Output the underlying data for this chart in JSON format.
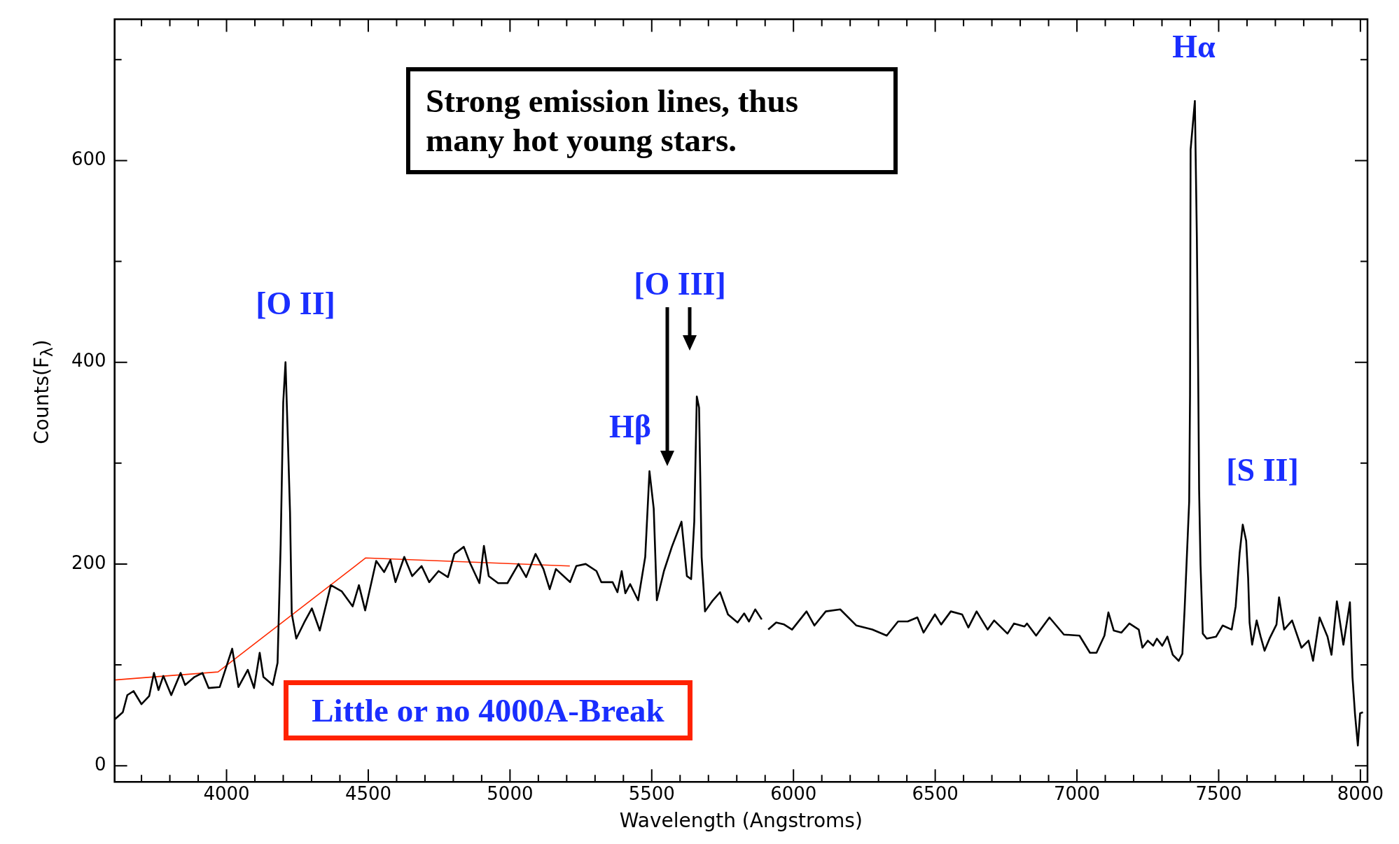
{
  "chart_data": {
    "type": "line",
    "xlabel": "Wavelength (Angstroms)",
    "ylabel": "Counts(F$_{λ}$)",
    "xlim": [
      3605,
      8025
    ],
    "ylim": [
      -16,
      740
    ],
    "xticks": [
      {
        "value": 3700,
        "label": null
      },
      {
        "value": 3800,
        "label": null
      },
      {
        "value": 3900,
        "label": null
      },
      4000,
      {
        "value": 4100,
        "label": null
      },
      {
        "value": 4200,
        "label": null
      },
      {
        "value": 4300,
        "label": null
      },
      {
        "value": 4400,
        "label": null
      },
      4500,
      {
        "value": 4600,
        "label": null
      },
      {
        "value": 4700,
        "label": null
      },
      {
        "value": 4800,
        "label": null
      },
      {
        "value": 4900,
        "label": null
      },
      5000,
      {
        "value": 5100,
        "label": null
      },
      {
        "value": 5200,
        "label": null
      },
      {
        "value": 5300,
        "label": null
      },
      {
        "value": 5400,
        "label": null
      },
      5500,
      {
        "value": 5600,
        "label": null
      },
      {
        "value": 5700,
        "label": null
      },
      {
        "value": 5800,
        "label": null
      },
      {
        "value": 5900,
        "label": null
      },
      6000,
      {
        "value": 6100,
        "label": null
      },
      {
        "value": 6200,
        "label": null
      },
      {
        "value": 6300,
        "label": null
      },
      {
        "value": 6400,
        "label": null
      },
      6500,
      {
        "value": 6600,
        "label": null
      },
      {
        "value": 6700,
        "label": null
      },
      {
        "value": 6800,
        "label": null
      },
      {
        "value": 6900,
        "label": null
      },
      7000,
      {
        "value": 7100,
        "label": null
      },
      {
        "value": 7200,
        "label": null
      },
      {
        "value": 7300,
        "label": null
      },
      {
        "value": 7400,
        "label": null
      },
      7500,
      {
        "value": 7600,
        "label": null
      },
      {
        "value": 7700,
        "label": null
      },
      {
        "value": 7800,
        "label": null
      },
      {
        "value": 7900,
        "label": null
      },
      8000
    ],
    "yticks": [
      0,
      {
        "value": 100,
        "label": null
      },
      200,
      {
        "value": 300,
        "label": null
      },
      400,
      {
        "value": 500,
        "label": null
      },
      600,
      {
        "value": 700,
        "label": null
      }
    ],
    "grid": false,
    "legend": false,
    "series": [
      {
        "color": "#000000",
        "x": [
          3606,
          3634,
          3650,
          3672,
          3700,
          3727,
          3744,
          3760,
          3777,
          3805,
          3838,
          3854,
          3887,
          3915,
          3937,
          3976,
          4020,
          4042,
          4075,
          4097,
          4117,
          4130,
          4163,
          4180,
          4191,
          4200,
          4208,
          4216,
          4224,
          4230,
          4246,
          4274,
          4301,
          4329,
          4368,
          4406,
          4445,
          4467,
          4489,
          4528,
          4556,
          4578,
          4596,
          4627,
          4655,
          4688,
          4715,
          4748,
          4781,
          4804,
          4837,
          4859,
          4892,
          4908,
          4925,
          4958,
          4991,
          5030,
          5057,
          5090,
          5118,
          5140,
          5162,
          5212,
          5234,
          5267,
          5305,
          5322,
          5362,
          5379,
          5394,
          5407,
          5424,
          5452,
          5477,
          5492,
          5507,
          5518,
          5543,
          5571,
          5605,
          5624,
          5639,
          5650,
          5659,
          5667,
          5676,
          5688,
          5713,
          5741,
          5769,
          5803,
          5826,
          5843,
          5865,
          5888,
          5900,
          5911,
          5939,
          5967,
          5995,
          6046,
          6074,
          6114,
          6165,
          6222,
          6278,
          6329,
          6369,
          6403,
          6437,
          6459,
          6499,
          6521,
          6555,
          6595,
          6617,
          6646,
          6685,
          6708,
          6755,
          6778,
          6815,
          6824,
          6856,
          6903,
          6954,
          7009,
          7046,
          7069,
          7097,
          7111,
          7130,
          7157,
          7185,
          7218,
          7231,
          7250,
          7269,
          7282,
          7301,
          7319,
          7338,
          7359,
          7372,
          7380,
          7396,
          7399,
          7401,
          7416,
          7423,
          7427,
          7431,
          7436,
          7444,
          7458,
          7491,
          7514,
          7546,
          7560,
          7574,
          7585,
          7597,
          7604,
          7609,
          7618,
          7634,
          7648,
          7662,
          7681,
          7704,
          7713,
          7731,
          7759,
          7792,
          7817,
          7833,
          7856,
          7884,
          7898,
          7917,
          7940,
          7963,
          7972,
          7981,
          7991,
          7999,
          8009
        ],
        "values": [
          46,
          53,
          70,
          74,
          61,
          69,
          92,
          75,
          89,
          70,
          92,
          80,
          88,
          92,
          77,
          78,
          116,
          78,
          95,
          77,
          112,
          88,
          80,
          102,
          220,
          360,
          400,
          327,
          251,
          151,
          126,
          142,
          156,
          134,
          179,
          173,
          158,
          179,
          154,
          203,
          192,
          204,
          182,
          207,
          188,
          198,
          182,
          193,
          187,
          210,
          217,
          201,
          181,
          218,
          188,
          181,
          181,
          200,
          187,
          210,
          195,
          175,
          195,
          182,
          198,
          200,
          193,
          182,
          182,
          172,
          193,
          171,
          180,
          164,
          207,
          292,
          255,
          164,
          193,
          217,
          242,
          188,
          185,
          242,
          366,
          355,
          207,
          153,
          163,
          172,
          150,
          142,
          151,
          143,
          155,
          145,
          null,
          135,
          142,
          140,
          135,
          153,
          139,
          153,
          155,
          139,
          135,
          129,
          143,
          143,
          147,
          132,
          150,
          140,
          153,
          150,
          137,
          153,
          135,
          144,
          131,
          141,
          138,
          141,
          129,
          147,
          130,
          129,
          112,
          112,
          129,
          152,
          134,
          132,
          141,
          135,
          117,
          124,
          119,
          126,
          119,
          128,
          110,
          104,
          111,
          156,
          262,
          368,
          611,
          659,
          524,
          413,
          274,
          199,
          131,
          126,
          128,
          139,
          135,
          158,
          211,
          239,
          223,
          186,
          142,
          120,
          144,
          128,
          114,
          127,
          140,
          167,
          135,
          144,
          117,
          124,
          104,
          147,
          128,
          110,
          163,
          120,
          162,
          88,
          51,
          20,
          52,
          53
        ]
      },
      {
        "color": "#ff2a00",
        "x": [
          3605,
          3970,
          4491,
          5211
        ],
        "values": [
          85,
          93,
          206,
          198
        ]
      }
    ],
    "annotations": [
      "Strong emission lines, thus many hot young stars.",
      "Little or no 4000A-Break",
      "[O II]",
      "Hβ",
      "[O III]",
      "Hα",
      "[S II]"
    ]
  }
}
